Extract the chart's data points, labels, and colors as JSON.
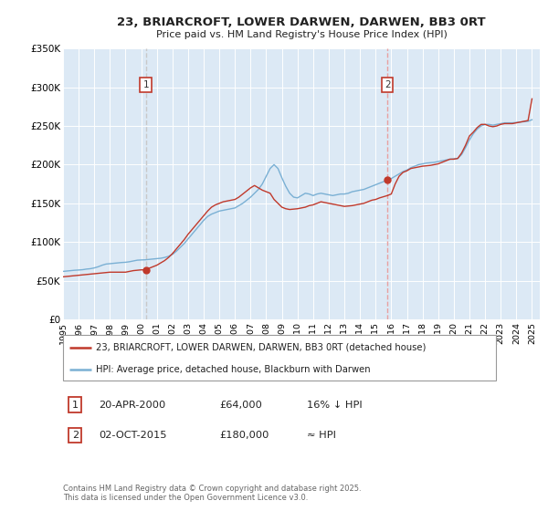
{
  "title": "23, BRIARCROFT, LOWER DARWEN, DARWEN, BB3 0RT",
  "subtitle": "Price paid vs. HM Land Registry's House Price Index (HPI)",
  "ylim": [
    0,
    350000
  ],
  "yticks": [
    0,
    50000,
    100000,
    150000,
    200000,
    250000,
    300000,
    350000
  ],
  "ytick_labels": [
    "£0",
    "£50K",
    "£100K",
    "£150K",
    "£200K",
    "£250K",
    "£300K",
    "£350K"
  ],
  "xlim_start": 1995.0,
  "xlim_end": 2025.5,
  "background_color": "#ffffff",
  "plot_bg_color": "#dce9f5",
  "grid_color": "#ffffff",
  "hpi_color": "#7ab0d4",
  "price_color": "#c0392b",
  "marker_color": "#c0392b",
  "vline1_color": "#c8c8c8",
  "vline2_color": "#e8a0a0",
  "annotation_box_color": "#c0392b",
  "transaction1_x": 2000.3,
  "transaction1_y": 64000,
  "transaction1_label": "1",
  "transaction1_date": "20-APR-2000",
  "transaction1_price": "£64,000",
  "transaction1_note": "16% ↓ HPI",
  "transaction2_x": 2015.75,
  "transaction2_y": 180000,
  "transaction2_label": "2",
  "transaction2_date": "02-OCT-2015",
  "transaction2_price": "£180,000",
  "transaction2_note": "≈ HPI",
  "legend_label1": "23, BRIARCROFT, LOWER DARWEN, DARWEN, BB3 0RT (detached house)",
  "legend_label2": "HPI: Average price, detached house, Blackburn with Darwen",
  "footer": "Contains HM Land Registry data © Crown copyright and database right 2025.\nThis data is licensed under the Open Government Licence v3.0.",
  "hpi_data_x": [
    1995.0,
    1995.25,
    1995.5,
    1995.75,
    1996.0,
    1996.25,
    1996.5,
    1996.75,
    1997.0,
    1997.25,
    1997.5,
    1997.75,
    1998.0,
    1998.25,
    1998.5,
    1998.75,
    1999.0,
    1999.25,
    1999.5,
    1999.75,
    2000.0,
    2000.25,
    2000.5,
    2000.75,
    2001.0,
    2001.25,
    2001.5,
    2001.75,
    2002.0,
    2002.25,
    2002.5,
    2002.75,
    2003.0,
    2003.25,
    2003.5,
    2003.75,
    2004.0,
    2004.25,
    2004.5,
    2004.75,
    2005.0,
    2005.25,
    2005.5,
    2005.75,
    2006.0,
    2006.25,
    2006.5,
    2006.75,
    2007.0,
    2007.25,
    2007.5,
    2007.75,
    2008.0,
    2008.25,
    2008.5,
    2008.75,
    2009.0,
    2009.25,
    2009.5,
    2009.75,
    2010.0,
    2010.25,
    2010.5,
    2010.75,
    2011.0,
    2011.25,
    2011.5,
    2011.75,
    2012.0,
    2012.25,
    2012.5,
    2012.75,
    2013.0,
    2013.25,
    2013.5,
    2013.75,
    2014.0,
    2014.25,
    2014.5,
    2014.75,
    2015.0,
    2015.25,
    2015.5,
    2015.75,
    2016.0,
    2016.25,
    2016.5,
    2016.75,
    2017.0,
    2017.25,
    2017.5,
    2017.75,
    2018.0,
    2018.25,
    2018.5,
    2018.75,
    2019.0,
    2019.25,
    2019.5,
    2019.75,
    2020.0,
    2020.25,
    2020.5,
    2020.75,
    2021.0,
    2021.25,
    2021.5,
    2021.75,
    2022.0,
    2022.25,
    2022.5,
    2022.75,
    2023.0,
    2023.25,
    2023.5,
    2023.75,
    2024.0,
    2024.25,
    2024.5,
    2024.75,
    2025.0
  ],
  "hpi_data_y": [
    62000,
    62500,
    63000,
    63500,
    63800,
    64200,
    65000,
    65500,
    66500,
    68000,
    70000,
    71500,
    72000,
    72500,
    73000,
    73500,
    73800,
    74500,
    75500,
    76500,
    76800,
    77000,
    77500,
    78000,
    78500,
    79000,
    80000,
    81500,
    84000,
    88000,
    93000,
    98000,
    104000,
    110000,
    116000,
    122000,
    128000,
    133000,
    136000,
    138000,
    140000,
    141000,
    142000,
    143000,
    144000,
    147000,
    150000,
    154000,
    158000,
    163000,
    168000,
    175000,
    185000,
    195000,
    200000,
    195000,
    183000,
    172000,
    163000,
    158000,
    157000,
    160000,
    163000,
    162000,
    160000,
    162000,
    163000,
    162000,
    161000,
    160000,
    161000,
    162000,
    162000,
    163000,
    165000,
    166000,
    167000,
    168000,
    170000,
    172000,
    174000,
    176000,
    178000,
    180000,
    182000,
    185000,
    188000,
    191000,
    193000,
    196000,
    198000,
    200000,
    201000,
    202000,
    202500,
    203000,
    204000,
    205000,
    206000,
    207000,
    207500,
    208000,
    213000,
    222000,
    232000,
    240000,
    246000,
    250000,
    252000,
    252000,
    251000,
    252000,
    253000,
    254000,
    254000,
    254000,
    254500,
    255000,
    255500,
    256000,
    258000
  ],
  "price_data_x": [
    1995.0,
    1995.25,
    1995.5,
    1995.75,
    1996.0,
    1996.25,
    1996.5,
    1996.75,
    1997.0,
    1997.25,
    1997.5,
    1997.75,
    1998.0,
    1998.25,
    1998.5,
    1998.75,
    1999.0,
    1999.25,
    1999.5,
    1999.75,
    2000.0,
    2000.25,
    2000.5,
    2000.75,
    2001.0,
    2001.25,
    2001.5,
    2001.75,
    2002.0,
    2002.25,
    2002.5,
    2002.75,
    2003.0,
    2003.25,
    2003.5,
    2003.75,
    2004.0,
    2004.25,
    2004.5,
    2004.75,
    2005.0,
    2005.25,
    2005.5,
    2005.75,
    2006.0,
    2006.25,
    2006.5,
    2006.75,
    2007.0,
    2007.25,
    2007.5,
    2007.75,
    2008.0,
    2008.25,
    2008.5,
    2008.75,
    2009.0,
    2009.25,
    2009.5,
    2009.75,
    2010.0,
    2010.25,
    2010.5,
    2010.75,
    2011.0,
    2011.25,
    2011.5,
    2011.75,
    2012.0,
    2012.25,
    2012.5,
    2012.75,
    2013.0,
    2013.25,
    2013.5,
    2013.75,
    2014.0,
    2014.25,
    2014.5,
    2014.75,
    2015.0,
    2015.25,
    2015.5,
    2015.75,
    2016.0,
    2016.25,
    2016.5,
    2016.75,
    2017.0,
    2017.25,
    2017.5,
    2017.75,
    2018.0,
    2018.25,
    2018.5,
    2018.75,
    2019.0,
    2019.25,
    2019.5,
    2019.75,
    2020.0,
    2020.25,
    2020.5,
    2020.75,
    2021.0,
    2021.25,
    2021.5,
    2021.75,
    2022.0,
    2022.25,
    2022.5,
    2022.75,
    2023.0,
    2023.25,
    2023.5,
    2023.75,
    2024.0,
    2024.25,
    2024.5,
    2024.75,
    2025.0
  ],
  "price_data_y": [
    55000,
    55500,
    56000,
    56500,
    57000,
    57500,
    58000,
    58500,
    59000,
    59500,
    60000,
    60500,
    61000,
    61000,
    61000,
    61000,
    61000,
    62000,
    63000,
    63500,
    64000,
    64000,
    66000,
    68000,
    70000,
    73000,
    76000,
    80000,
    85000,
    91000,
    97000,
    103000,
    110000,
    116000,
    122000,
    128000,
    134000,
    140000,
    145000,
    148000,
    150000,
    152000,
    153000,
    154000,
    155000,
    158000,
    162000,
    166000,
    170000,
    173000,
    170000,
    167000,
    165000,
    163000,
    155000,
    150000,
    145000,
    143000,
    142000,
    142500,
    143000,
    144000,
    145000,
    147000,
    148000,
    150000,
    152000,
    151000,
    150000,
    149000,
    148000,
    147000,
    146000,
    146500,
    147000,
    148000,
    149000,
    150000,
    152000,
    154000,
    155000,
    157000,
    158500,
    160000,
    162000,
    175000,
    185000,
    190000,
    192000,
    195000,
    196000,
    197000,
    198000,
    198500,
    199000,
    200000,
    201000,
    203000,
    205000,
    207000,
    207000,
    208000,
    215000,
    225000,
    237000,
    242000,
    248000,
    252000,
    252000,
    250000,
    249000,
    250000,
    252000,
    253000,
    253000,
    253000,
    254000,
    255000,
    256000,
    257000,
    285000
  ]
}
